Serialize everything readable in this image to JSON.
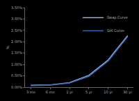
{
  "chart_data": {
    "type": "line",
    "y_label": "%",
    "categories": [
      "3 mo",
      "6 mo",
      "1 yr",
      "5 yr",
      "10 yr",
      "30 yr"
    ],
    "series": [
      {
        "name": "Swap Curve",
        "color": "#8fb3e8",
        "values": [
          0.08,
          0.1,
          0.2,
          0.52,
          1.2,
          2.27
        ]
      },
      {
        "name": "Gilt Curve",
        "color": "#3f66b0",
        "values": [
          0.06,
          0.09,
          0.18,
          0.48,
          1.15,
          2.22
        ]
      }
    ],
    "ylim": [
      0,
      3.5
    ],
    "yticks": [
      {
        "value": 0,
        "label": "0.00%"
      },
      {
        "value": 0.5,
        "label": "0.50%"
      },
      {
        "value": 1,
        "label": "1.00%"
      },
      {
        "value": 1.5,
        "label": "1.50%"
      },
      {
        "value": 2,
        "label": "2.00%"
      },
      {
        "value": 2.5,
        "label": "2.50%"
      },
      {
        "value": 3,
        "label": "3.00%"
      },
      {
        "value": 3.5,
        "label": "3.50%"
      }
    ],
    "grid": false,
    "legend": "top-right"
  }
}
